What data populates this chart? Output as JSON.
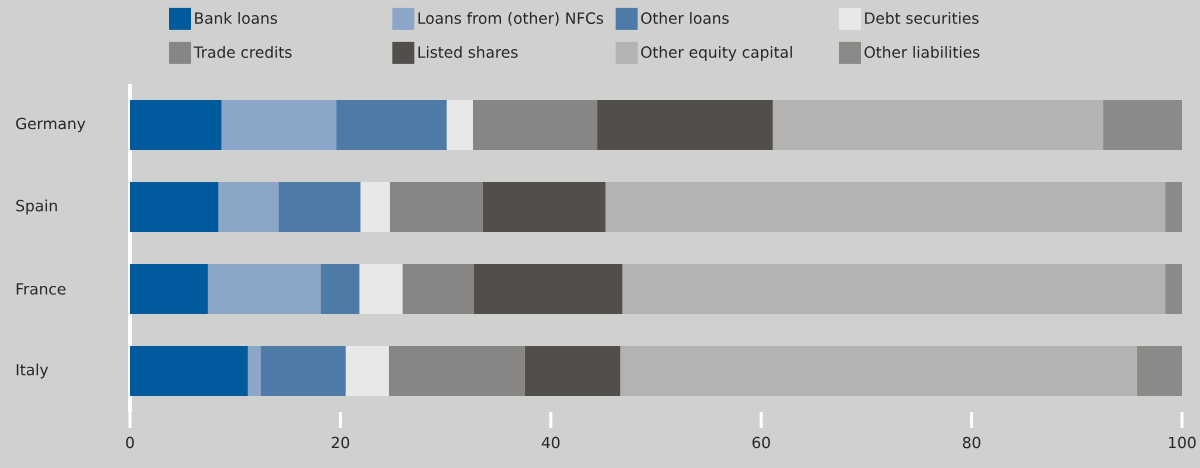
{
  "chart_data": {
    "type": "bar",
    "orientation": "horizontal",
    "stacked": true,
    "categories": [
      "Germany",
      "Spain",
      "France",
      "Italy"
    ],
    "series": [
      {
        "name": "Bank loans",
        "color": "#005a9b",
        "values": [
          8.7,
          8.4,
          7.4,
          11.2
        ]
      },
      {
        "name": "Loans from (other) NFCs",
        "color": "#8ba6c8",
        "values": [
          10.9,
          5.7,
          10.7,
          1.2
        ]
      },
      {
        "name": "Other loans",
        "color": "#4e7aa8",
        "values": [
          10.5,
          7.8,
          3.7,
          8.1
        ]
      },
      {
        "name": "Debt securities",
        "color": "#e8e8e8",
        "values": [
          2.5,
          2.8,
          4.1,
          4.1
        ]
      },
      {
        "name": "Trade credits",
        "color": "#878684",
        "values": [
          11.8,
          8.8,
          6.8,
          12.9
        ]
      },
      {
        "name": "Listed shares",
        "color": "#524e4b",
        "values": [
          16.7,
          11.7,
          14.1,
          9.1
        ]
      },
      {
        "name": "Other equity capital",
        "color": "#b4b3b1",
        "values": [
          31.4,
          53.2,
          51.6,
          49.1
        ]
      },
      {
        "name": "Other liabilities",
        "color": "#8a8a88",
        "values": [
          7.5,
          1.6,
          1.6,
          4.3
        ]
      }
    ],
    "xlim": [
      0,
      100
    ],
    "xticks": [
      0,
      20,
      40,
      60,
      80,
      100
    ],
    "grid": false,
    "legend": "top"
  }
}
